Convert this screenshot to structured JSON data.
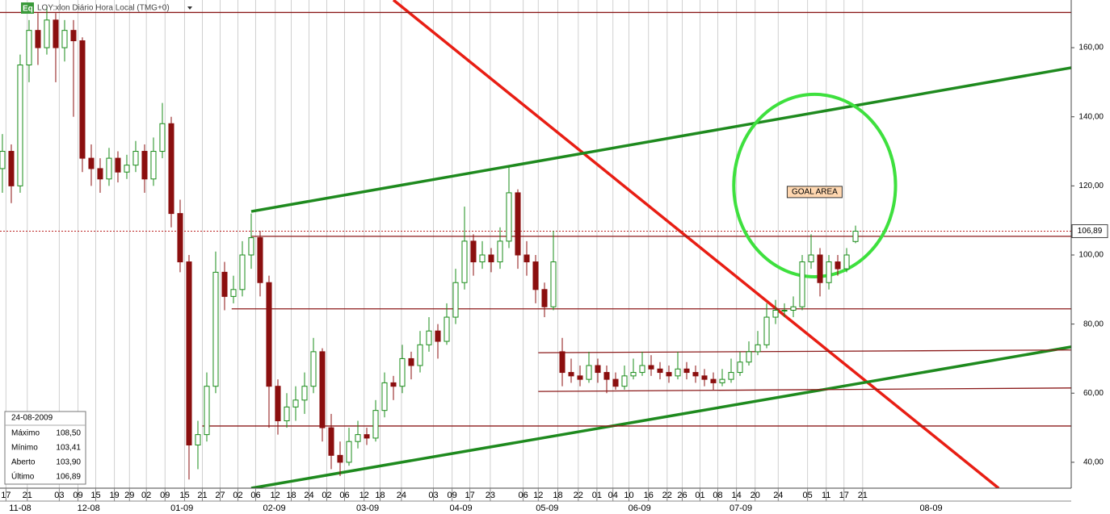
{
  "header": {
    "badge": "Eq",
    "title": "LOY:xlon Diário Hora Local (TMG+0)"
  },
  "chart_data": {
    "type": "candlestick",
    "up_color": "#1a8c1a",
    "down_color": "#8b0f0f",
    "ohlc": [
      [
        125,
        135,
        118,
        130
      ],
      [
        130,
        132,
        115,
        120
      ],
      [
        120,
        158,
        118,
        155
      ],
      [
        155,
        168,
        150,
        165
      ],
      [
        165,
        170,
        155,
        160
      ],
      [
        160,
        172,
        158,
        168
      ],
      [
        168,
        170,
        150,
        160
      ],
      [
        160,
        168,
        156,
        165
      ],
      [
        165,
        168,
        140,
        162
      ],
      [
        162,
        163,
        124,
        128
      ],
      [
        128,
        132,
        120,
        125
      ],
      [
        125,
        128,
        118,
        122
      ],
      [
        122,
        131,
        120,
        128
      ],
      [
        128,
        130,
        121,
        124
      ],
      [
        124,
        129,
        122,
        126
      ],
      [
        126,
        133,
        124,
        130
      ],
      [
        130,
        132,
        118,
        122
      ],
      [
        122,
        134,
        120,
        130
      ],
      [
        130,
        144,
        128,
        138
      ],
      [
        138,
        140,
        108,
        112
      ],
      [
        112,
        116,
        95,
        98
      ],
      [
        98,
        100,
        35,
        45
      ],
      [
        45,
        52,
        38,
        48
      ],
      [
        48,
        66,
        46,
        62
      ],
      [
        62,
        101,
        60,
        95
      ],
      [
        95,
        98,
        84,
        88
      ],
      [
        88,
        94,
        86,
        90
      ],
      [
        90,
        104,
        88,
        100
      ],
      [
        100,
        112,
        96,
        105
      ],
      [
        105,
        107,
        88,
        92
      ],
      [
        92,
        94,
        50,
        62
      ],
      [
        62,
        64,
        48,
        52
      ],
      [
        52,
        60,
        50,
        56
      ],
      [
        56,
        62,
        52,
        58
      ],
      [
        58,
        66,
        54,
        62
      ],
      [
        62,
        76,
        60,
        72
      ],
      [
        72,
        73,
        46,
        50
      ],
      [
        50,
        54,
        38,
        42
      ],
      [
        42,
        46,
        36,
        40
      ],
      [
        40,
        50,
        39,
        46
      ],
      [
        46,
        52,
        44,
        48
      ],
      [
        48,
        50,
        45,
        47
      ],
      [
        47,
        58,
        46,
        55
      ],
      [
        55,
        66,
        53,
        63
      ],
      [
        63,
        65,
        58,
        62
      ],
      [
        62,
        74,
        60,
        70
      ],
      [
        70,
        72,
        64,
        68
      ],
      [
        68,
        78,
        66,
        74
      ],
      [
        74,
        82,
        72,
        78
      ],
      [
        78,
        80,
        70,
        75
      ],
      [
        75,
        86,
        74,
        82
      ],
      [
        82,
        96,
        80,
        92
      ],
      [
        92,
        114,
        90,
        104
      ],
      [
        104,
        106,
        94,
        98
      ],
      [
        98,
        104,
        96,
        100
      ],
      [
        100,
        102,
        95,
        98
      ],
      [
        98,
        108,
        96,
        104
      ],
      [
        104,
        126,
        102,
        118
      ],
      [
        118,
        119,
        96,
        100
      ],
      [
        100,
        104,
        94,
        98
      ],
      [
        98,
        100,
        86,
        90
      ],
      [
        90,
        92,
        82,
        85
      ],
      [
        85,
        107,
        84,
        98
      ],
      [
        72,
        76,
        62,
        66
      ],
      [
        66,
        70,
        63,
        65
      ],
      [
        65,
        68,
        62,
        64
      ],
      [
        64,
        72,
        63,
        68
      ],
      [
        68,
        70,
        63,
        66
      ],
      [
        66,
        68,
        60,
        64
      ],
      [
        64,
        66,
        61,
        62
      ],
      [
        62,
        68,
        61,
        65
      ],
      [
        65,
        70,
        64,
        66
      ],
      [
        66,
        72,
        65,
        68
      ],
      [
        68,
        71,
        65,
        67
      ],
      [
        67,
        69,
        64,
        66
      ],
      [
        66,
        68,
        63,
        65
      ],
      [
        65,
        72,
        64,
        67
      ],
      [
        67,
        69,
        64,
        66
      ],
      [
        66,
        68,
        63,
        65
      ],
      [
        65,
        67,
        62,
        64
      ],
      [
        64,
        66,
        61,
        63
      ],
      [
        63,
        67,
        62,
        64
      ],
      [
        64,
        70,
        63,
        66
      ],
      [
        66,
        72,
        65,
        69
      ],
      [
        69,
        75,
        68,
        72
      ],
      [
        72,
        78,
        71,
        74
      ],
      [
        74,
        86,
        73,
        82
      ],
      [
        82,
        87,
        80,
        84
      ],
      [
        84,
        86,
        82,
        84
      ],
      [
        84,
        88,
        82,
        85
      ],
      [
        85,
        100,
        84,
        98
      ],
      [
        98,
        106,
        96,
        100
      ],
      [
        100,
        102,
        88,
        92
      ],
      [
        92,
        100,
        90,
        98
      ],
      [
        98,
        100,
        94,
        96
      ],
      [
        96,
        102,
        95,
        100
      ],
      [
        103.9,
        108.5,
        103.41,
        106.89
      ]
    ],
    "xlim": [
      -0.27,
      120.27
    ],
    "ylim": [
      32.5,
      173.8
    ],
    "yticks": [
      {
        "value": 40,
        "label": "40,00"
      },
      {
        "value": 60,
        "label": "60,00"
      },
      {
        "value": 80,
        "label": "80,00"
      },
      {
        "value": 100,
        "label": "100,00"
      },
      {
        "value": 120,
        "label": "120,00"
      },
      {
        "value": 140,
        "label": "140,00"
      },
      {
        "value": 160,
        "label": "160,00"
      }
    ],
    "xticks": [
      {
        "value": 0.4,
        "label": "17"
      },
      {
        "value": 2.8,
        "label": "21"
      },
      {
        "value": 6.4,
        "label": "03"
      },
      {
        "value": 8.5,
        "label": "09"
      },
      {
        "value": 10.5,
        "label": "15"
      },
      {
        "value": 12.6,
        "label": "19"
      },
      {
        "value": 14.3,
        "label": "29"
      },
      {
        "value": 16.2,
        "label": "02"
      },
      {
        "value": 18.3,
        "label": "09"
      },
      {
        "value": 20.5,
        "label": "15"
      },
      {
        "value": 22.5,
        "label": "21"
      },
      {
        "value": 24.5,
        "label": "27"
      },
      {
        "value": 26.5,
        "label": "02"
      },
      {
        "value": 28.5,
        "label": "06"
      },
      {
        "value": 30.7,
        "label": "12"
      },
      {
        "value": 32.5,
        "label": "18"
      },
      {
        "value": 34.5,
        "label": "24"
      },
      {
        "value": 36.5,
        "label": "02"
      },
      {
        "value": 38.5,
        "label": "06"
      },
      {
        "value": 40.7,
        "label": "12"
      },
      {
        "value": 42.5,
        "label": "18"
      },
      {
        "value": 44.9,
        "label": "24"
      },
      {
        "value": 48.5,
        "label": "03"
      },
      {
        "value": 50.6,
        "label": "09"
      },
      {
        "value": 52.6,
        "label": "17"
      },
      {
        "value": 54.9,
        "label": "23"
      },
      {
        "value": 58.6,
        "label": "06"
      },
      {
        "value": 60.3,
        "label": "12"
      },
      {
        "value": 62.5,
        "label": "18"
      },
      {
        "value": 64.8,
        "label": "22"
      },
      {
        "value": 66.9,
        "label": "01"
      },
      {
        "value": 68.7,
        "label": "04"
      },
      {
        "value": 70.5,
        "label": "10"
      },
      {
        "value": 72.7,
        "label": "16"
      },
      {
        "value": 74.8,
        "label": "22"
      },
      {
        "value": 76.5,
        "label": "26"
      },
      {
        "value": 78.5,
        "label": "01"
      },
      {
        "value": 80.5,
        "label": "08"
      },
      {
        "value": 82.6,
        "label": "14"
      },
      {
        "value": 84.7,
        "label": "20"
      },
      {
        "value": 87.3,
        "label": "24"
      },
      {
        "value": 90.6,
        "label": "05"
      },
      {
        "value": 92.7,
        "label": "11"
      },
      {
        "value": 94.7,
        "label": "17"
      },
      {
        "value": 96.8,
        "label": "21"
      }
    ],
    "months": [
      {
        "value": 2,
        "label": "11-08"
      },
      {
        "value": 9.7,
        "label": "12-08"
      },
      {
        "value": 20.2,
        "label": "01-09"
      },
      {
        "value": 30.6,
        "label": "02-09"
      },
      {
        "value": 41.1,
        "label": "03-09"
      },
      {
        "value": 51.6,
        "label": "04-09"
      },
      {
        "value": 61.3,
        "label": "05-09"
      },
      {
        "value": 71.7,
        "label": "06-09"
      },
      {
        "value": 83.1,
        "label": "07-09"
      },
      {
        "value": 104.5,
        "label": "08-09"
      }
    ],
    "last_price": {
      "value": 106.89,
      "label": "106,89"
    },
    "lines": [
      {
        "color": "#e81e14",
        "points": [
          [
            44,
            173.8
          ],
          [
            112.1,
            32.5
          ]
        ]
      },
      {
        "color": "#1e8a1e",
        "points": [
          [
            28,
            112.6
          ],
          [
            120.27,
            154.2
          ]
        ]
      },
      {
        "color": "#1e8a1e",
        "points": [
          [
            28,
            32.5
          ],
          [
            120.27,
            73.4
          ]
        ]
      },
      {
        "color": "#8b1a1a",
        "points": [
          [
            -0.27,
            170.2
          ],
          [
            120.27,
            170.2
          ]
        ]
      },
      {
        "color": "#8b1a1a",
        "points": [
          [
            28,
            105.4
          ],
          [
            120.27,
            105.4
          ]
        ]
      },
      {
        "color": "#8b1a1a",
        "points": [
          [
            25.8,
            84.4
          ],
          [
            120.27,
            84.4
          ]
        ]
      },
      {
        "color": "#8b1a1a",
        "points": [
          [
            22.5,
            50.5
          ],
          [
            120.27,
            50.5
          ]
        ]
      },
      {
        "color": "#8b1a1a",
        "points": [
          [
            60.3,
            71.7
          ],
          [
            120.27,
            72.5
          ]
        ]
      },
      {
        "color": "#8b1a1a",
        "points": [
          [
            60.3,
            60.5
          ],
          [
            120.27,
            61.5
          ]
        ]
      }
    ],
    "goal": {
      "label": "GOAL AREA",
      "center": [
        91.4,
        120.1
      ],
      "rx": 9.1,
      "ry": 26.4,
      "color": "#3ee03e"
    }
  },
  "info": {
    "date": "24-08-2009",
    "rows": [
      [
        "Máximo",
        "108,50"
      ],
      [
        "Mínimo",
        "103,41"
      ],
      [
        "Aberto",
        "103,90"
      ],
      [
        "Último",
        "106,89"
      ]
    ]
  }
}
